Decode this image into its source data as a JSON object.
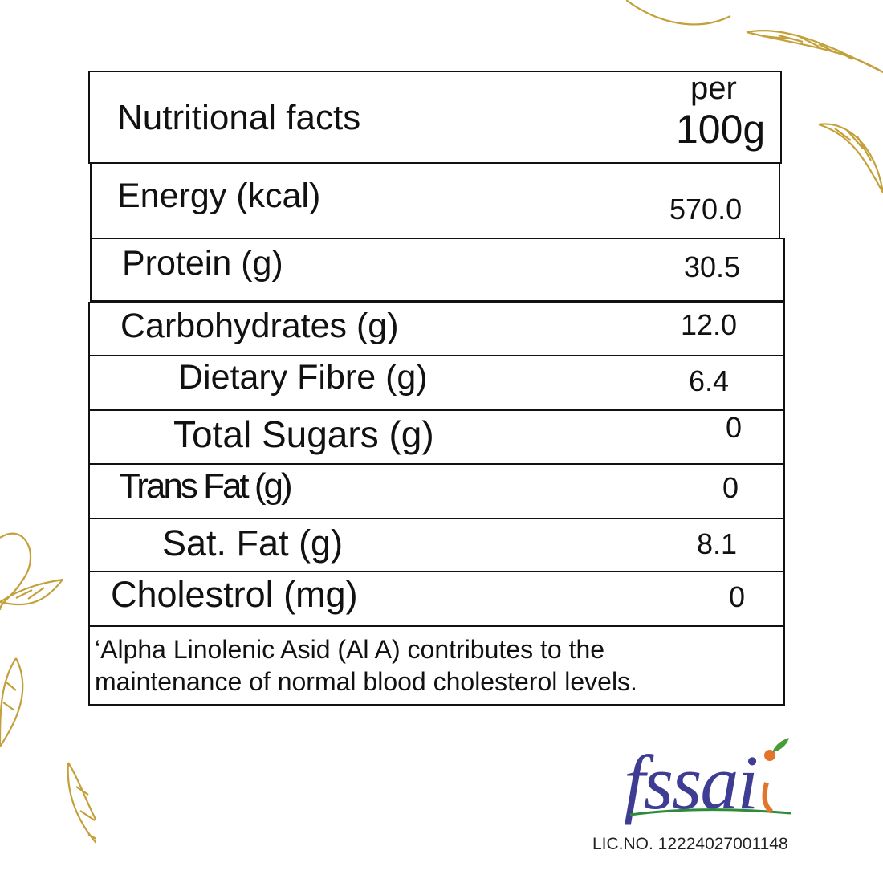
{
  "table": {
    "header": {
      "label": "Nutritional facts",
      "per": "per",
      "unit": "100g"
    },
    "rows": [
      {
        "label": "Energy (kcal)",
        "value": "570.0"
      },
      {
        "label": "Protein (g)",
        "value": "30.5"
      },
      {
        "label": "Carbohydrates (g)",
        "value": "12.0"
      },
      {
        "label": "Dietary Fibre (g)",
        "value": "6.4"
      },
      {
        "label": "Total Sugars (g)",
        "value": "0"
      },
      {
        "label": "Trans Fat (g)",
        "value": "0"
      },
      {
        "label": "Sat. Fat (g)",
        "value": "8.1"
      },
      {
        "label": "Cholestrol (mg)",
        "value": "0"
      }
    ],
    "footnote_line1": "‘Alpha Linolenic Asid (Al A) contributes to the",
    "footnote_line2": "maintenance of normal blood cholesterol levels."
  },
  "logo": {
    "text": "fssai",
    "dot_color": "#e2752a",
    "leaf_color": "#4a9a3a",
    "swoosh_color": "#2e8b3a",
    "text_color": "#3f3c94",
    "accent_color": "#e2752a"
  },
  "license": "LIC.NO. 12224027001148",
  "colors": {
    "leaf_gold": "#c4a03a",
    "border": "#111111"
  }
}
